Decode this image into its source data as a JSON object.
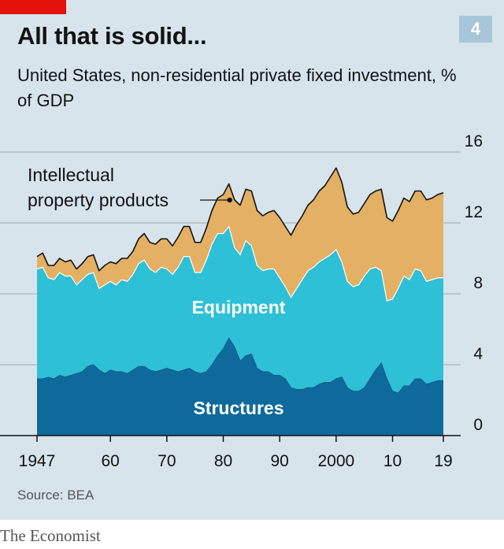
{
  "header": {
    "title": "All that is solid...",
    "chart_number": "4",
    "subtitle": "United States, non-residential private fixed investment, % of GDP"
  },
  "footer": {
    "source": "Source: BEA",
    "brand": "The Economist"
  },
  "colors": {
    "background": "#d7e4ec",
    "structures": "#0f6a9c",
    "equipment": "#2ec0d6",
    "ipp": "#e3b064",
    "total_line": "#121212",
    "accent_red": "#e3120b",
    "number_box": "#a8c6d9"
  },
  "chart_data": {
    "type": "area",
    "stacked": true,
    "x_tick_labels": [
      "1947",
      "60",
      "70",
      "80",
      "90",
      "2000",
      "10",
      "19"
    ],
    "x_tick_values": [
      1947,
      1960,
      1970,
      1980,
      1990,
      2000,
      2010,
      2019
    ],
    "xlim": [
      1947,
      2019
    ],
    "y_tick_labels": [
      "0",
      "4",
      "8",
      "12",
      "16"
    ],
    "y_tick_values": [
      0,
      4,
      8,
      12,
      16
    ],
    "ylim": [
      0,
      16
    ],
    "y_axis_position": "right",
    "grid": true,
    "x": [
      1947,
      1948,
      1949,
      1950,
      1951,
      1952,
      1953,
      1954,
      1955,
      1956,
      1957,
      1958,
      1959,
      1960,
      1961,
      1962,
      1963,
      1964,
      1965,
      1966,
      1967,
      1968,
      1969,
      1970,
      1971,
      1972,
      1973,
      1974,
      1975,
      1976,
      1977,
      1978,
      1979,
      1980,
      1981,
      1982,
      1983,
      1984,
      1985,
      1986,
      1987,
      1988,
      1989,
      1990,
      1991,
      1992,
      1993,
      1994,
      1995,
      1996,
      1997,
      1998,
      1999,
      2000,
      2001,
      2002,
      2003,
      2004,
      2005,
      2006,
      2007,
      2008,
      2009,
      2010,
      2011,
      2012,
      2013,
      2014,
      2015,
      2016,
      2017,
      2018,
      2019
    ],
    "series": [
      {
        "name": "Structures",
        "values": [
          3.2,
          3.2,
          3.3,
          3.2,
          3.4,
          3.3,
          3.4,
          3.5,
          3.6,
          3.9,
          4.0,
          3.7,
          3.5,
          3.7,
          3.6,
          3.6,
          3.5,
          3.7,
          3.9,
          3.9,
          3.7,
          3.6,
          3.7,
          3.8,
          3.7,
          3.6,
          3.7,
          3.8,
          3.6,
          3.5,
          3.6,
          4.0,
          4.5,
          4.9,
          5.5,
          5.0,
          4.2,
          4.5,
          4.6,
          3.8,
          3.6,
          3.6,
          3.4,
          3.4,
          3.2,
          2.7,
          2.6,
          2.6,
          2.7,
          2.7,
          2.9,
          3.0,
          3.0,
          3.2,
          3.3,
          2.7,
          2.5,
          2.5,
          2.7,
          3.2,
          3.7,
          4.1,
          3.2,
          2.5,
          2.4,
          2.8,
          2.8,
          3.2,
          3.2,
          2.9,
          3.0,
          3.1,
          3.1
        ]
      },
      {
        "name": "Equipment",
        "values": [
          6.2,
          6.3,
          5.6,
          5.6,
          5.8,
          5.7,
          5.6,
          5.0,
          5.2,
          5.2,
          5.2,
          4.6,
          5.0,
          5.0,
          4.9,
          5.2,
          5.2,
          5.4,
          5.8,
          6.0,
          5.7,
          5.6,
          5.8,
          5.6,
          5.4,
          5.9,
          6.4,
          6.3,
          5.6,
          5.7,
          6.3,
          6.8,
          6.9,
          6.5,
          6.3,
          5.6,
          6.0,
          6.5,
          6.1,
          5.8,
          5.7,
          5.8,
          6.0,
          5.5,
          5.2,
          5.1,
          5.7,
          6.2,
          6.6,
          6.8,
          6.9,
          7.0,
          7.2,
          7.3,
          6.5,
          6.0,
          5.9,
          6.0,
          6.3,
          6.2,
          5.8,
          5.2,
          4.4,
          5.2,
          5.9,
          6.2,
          6.0,
          6.2,
          6.1,
          5.8,
          5.8,
          5.8,
          5.8
        ]
      },
      {
        "name": "Intellectual property products",
        "values": [
          0.7,
          0.8,
          0.7,
          0.8,
          0.8,
          0.8,
          0.9,
          0.9,
          0.9,
          1.0,
          1.0,
          1.0,
          1.1,
          1.1,
          1.2,
          1.2,
          1.3,
          1.3,
          1.4,
          1.5,
          1.5,
          1.6,
          1.6,
          1.7,
          1.6,
          1.7,
          1.7,
          1.7,
          1.7,
          1.7,
          1.8,
          1.9,
          2.0,
          2.2,
          2.4,
          2.7,
          2.8,
          2.9,
          3.1,
          3.1,
          3.1,
          3.2,
          3.3,
          3.4,
          3.4,
          3.5,
          3.6,
          3.6,
          3.7,
          3.8,
          4.0,
          4.1,
          4.4,
          4.6,
          4.5,
          4.2,
          4.1,
          4.1,
          4.1,
          4.2,
          4.3,
          4.6,
          4.7,
          4.4,
          4.4,
          4.4,
          4.4,
          4.4,
          4.5,
          4.6,
          4.6,
          4.7,
          4.8
        ]
      }
    ],
    "band_labels": {
      "structures": "Structures",
      "equipment": "Equipment",
      "ipp": "Intellectual property products"
    },
    "annotation": {
      "line1": "Intellectual",
      "line2": "property products",
      "target_year": 1981
    }
  }
}
